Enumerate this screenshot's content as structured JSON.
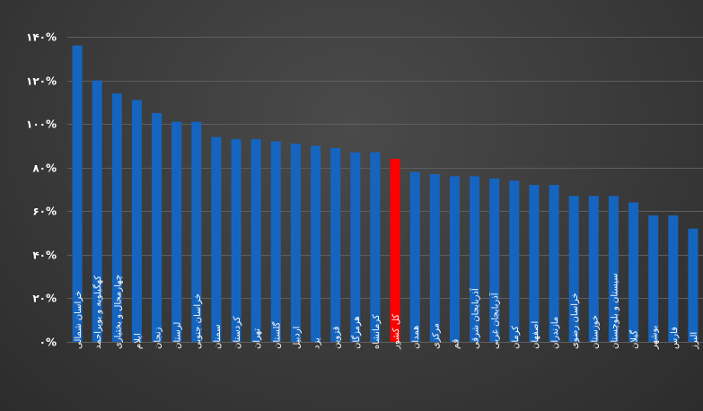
{
  "chart_data": {
    "type": "bar",
    "categories": [
      "خراسان شمالی",
      "کهگیلویه و بویراحمد",
      "چهارمحال و بختیاری",
      "ایلام",
      "زنجان",
      "لرستان",
      "خراسان جنوبی",
      "سمنان",
      "کردستان",
      "تهران",
      "گلستان",
      "اردبیل",
      "یزد",
      "قزوین",
      "هرمزگان",
      "کرمانشاه",
      "کل کشور",
      "همدان",
      "مرکزی",
      "قم",
      "آذربایجان شرقی",
      "آذربایجان غربی",
      "کرمان",
      "اصفهان",
      "مازندران",
      "خراسان رضوی",
      "خوزستان",
      "سیستان و بلوچستان",
      "گیلان",
      "بوشهر",
      "فارس",
      "البرز"
    ],
    "values": [
      136,
      120,
      114,
      111,
      105,
      101,
      101,
      94,
      93,
      93,
      92,
      91,
      90,
      89,
      87,
      87,
      84,
      78,
      77,
      76,
      76,
      75,
      74,
      72,
      72,
      67,
      67,
      67,
      64,
      58,
      58,
      52
    ],
    "highlight_category": "کل کشور",
    "colors": {
      "bar": "#1565c0",
      "highlight": "#ff0000",
      "grid": "#5e5e5e",
      "text": "#ffffff"
    },
    "ylim": [
      0,
      140
    ],
    "yticks": [
      {
        "value": 0,
        "label": "۰%"
      },
      {
        "value": 20,
        "label": "۲۰%"
      },
      {
        "value": 40,
        "label": "۴۰%"
      },
      {
        "value": 60,
        "label": "۶۰%"
      },
      {
        "value": 80,
        "label": "۸۰%"
      },
      {
        "value": 100,
        "label": "۱۰۰%"
      },
      {
        "value": 120,
        "label": "۱۲۰%"
      },
      {
        "value": 140,
        "label": "۱۴۰%"
      }
    ],
    "grid": true,
    "legend": false,
    "title": "",
    "xlabel": "",
    "ylabel": ""
  }
}
